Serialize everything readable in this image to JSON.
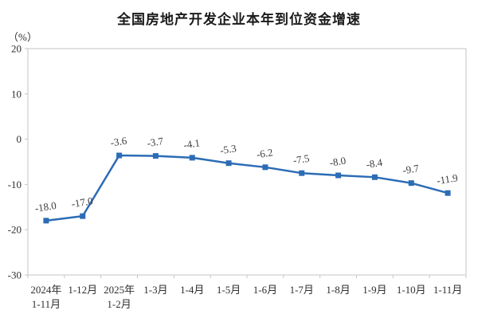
{
  "title": "全国房地产开发企业本年到位资金增速",
  "unit_label": "（%）",
  "colors": {
    "line": "#2c6cb5",
    "marker": "#2c6cb5",
    "axis": "#c4c4c4",
    "tick_text": "#2f2f2f",
    "data_label_text": "#3d3d3d",
    "title_text": "#1a1a1a",
    "background": "#ffffff"
  },
  "chart_data": {
    "type": "line",
    "title": "全国房地产开发企业本年到位资金增速",
    "ylabel": "（%）",
    "categories": [
      "2024年\n1-11月",
      "1-12月",
      "2025年\n1-2月",
      "1-3月",
      "1-4月",
      "1-5月",
      "1-6月",
      "1-7月",
      "1-8月",
      "1-9月",
      "1-10月",
      "1-11月"
    ],
    "values": [
      -18.0,
      -17.0,
      -3.6,
      -3.7,
      -4.1,
      -5.3,
      -6.2,
      -7.5,
      -8.0,
      -8.4,
      -9.7,
      -11.9
    ],
    "data_labels": [
      "-18.0",
      "-17.0",
      "-3.6",
      "-3.7",
      "-4.1",
      "-5.3",
      "-6.2",
      "-7.5",
      "-8.0",
      "-8.4",
      "-9.7",
      "-11.9"
    ],
    "ylim": [
      -30,
      20
    ],
    "ytick_interval": 10,
    "ytick_labels": [
      "20",
      "10",
      "0",
      "-10",
      "-20",
      "-30"
    ],
    "grid": false,
    "legend": "none",
    "marker_shape": "square"
  }
}
